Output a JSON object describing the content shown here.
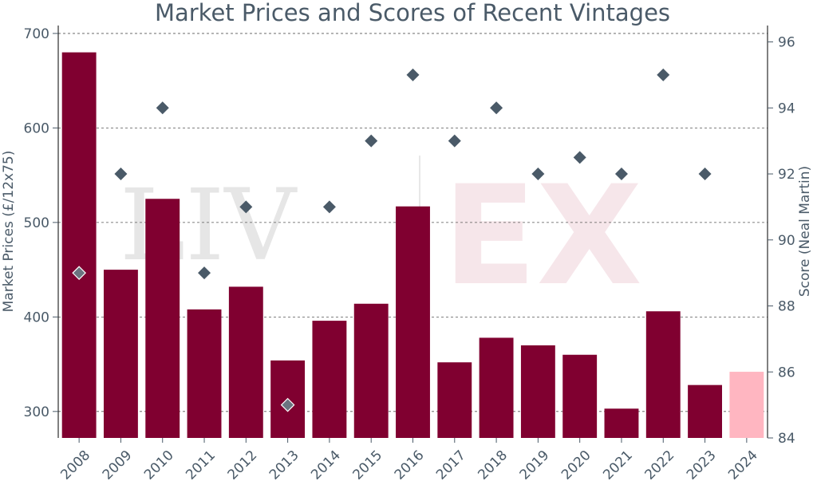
{
  "watermark": {
    "left": "LIV",
    "right": "EX"
  },
  "chart_data": {
    "type": "bar",
    "title": "Market Prices and Scores of Recent Vintages",
    "xlabel": "",
    "ylabel": "Market Prices (£/12x75)",
    "ylabel_right": "Score (Neal Martin)",
    "categories": [
      "2008",
      "2009",
      "2010",
      "2011",
      "2012",
      "2013",
      "2014",
      "2015",
      "2016",
      "2017",
      "2018",
      "2019",
      "2020",
      "2021",
      "2022",
      "2023",
      "2024"
    ],
    "ylim": [
      272,
      705
    ],
    "y_ticks": [
      300,
      400,
      500,
      600,
      700
    ],
    "y2lim": [
      84,
      96.4
    ],
    "y2_ticks": [
      84,
      86,
      88,
      90,
      92,
      94,
      96
    ],
    "grid": true,
    "series": [
      {
        "kind": "bar",
        "values": [
          680,
          450,
          525,
          408,
          432,
          354,
          396,
          414,
          517,
          352,
          378,
          370,
          360,
          303,
          406,
          328,
          342
        ],
        "color": "#800030",
        "highlight_last_color": "#ffb6c1"
      },
      {
        "kind": "scatter",
        "axis": "right",
        "values": [
          89,
          92,
          94,
          89,
          91,
          85,
          91,
          93,
          95,
          93,
          94,
          92,
          92.5,
          92,
          95,
          92,
          null
        ],
        "color": "#4a5a68",
        "highlight_color": "#6b7480"
      }
    ]
  }
}
